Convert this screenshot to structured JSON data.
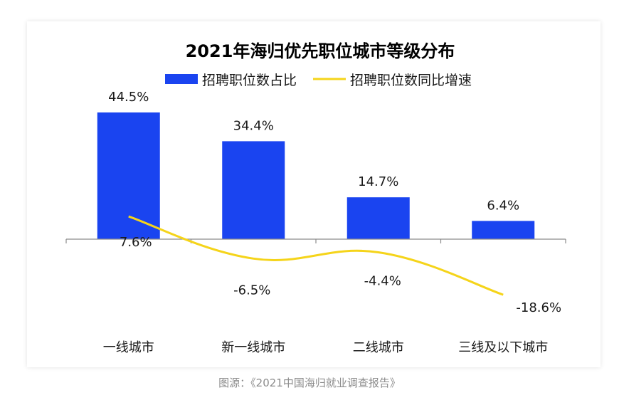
{
  "chart_data": {
    "type": "bar",
    "title": "2021年海归优先职位城市等级分布",
    "categories": [
      "一线城市",
      "新一线城市",
      "二线城市",
      "三线及以下城市"
    ],
    "series": [
      {
        "name": "招聘职位数占比",
        "type": "bar",
        "values": [
          44.5,
          34.4,
          14.7,
          6.4
        ],
        "labels": [
          "44.5%",
          "34.4%",
          "14.7%",
          "6.4%"
        ]
      },
      {
        "name": "招聘职位数同比增速",
        "type": "line",
        "smooth": true,
        "values": [
          7.6,
          -6.5,
          -4.4,
          -18.6
        ],
        "labels": [
          "7.6%",
          "-6.5%",
          "-4.4%",
          "-18.6%"
        ]
      }
    ],
    "legend_position": "top",
    "grid": false,
    "colors": {
      "bar": "#1a44f0",
      "line": "#f5d41a",
      "axis": "#8c8c8c"
    }
  },
  "caption": "图源：《2021中国海归就业调查报告》"
}
